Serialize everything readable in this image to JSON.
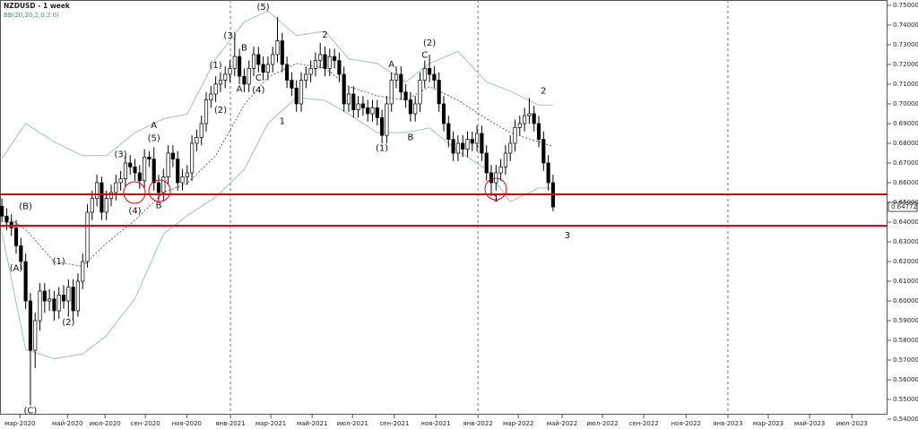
{
  "chart_data": {
    "type": "candlestick",
    "title": "NZDUSD - 1 week",
    "indicator": "BB(20,20,2,0,2.0)",
    "up_color": "#ffffff",
    "down_color": "#000000",
    "xlim": [
      -0.4,
      186.4
    ],
    "xticks": [
      {
        "value": 3.8,
        "label": "мар-2020"
      },
      {
        "value": 13.8,
        "label": "май-2020"
      },
      {
        "value": 21.7,
        "label": "июл-2020"
      },
      {
        "value": 30.2,
        "label": "сен-2020"
      },
      {
        "value": 38.9,
        "label": "ноя-2020"
      },
      {
        "value": 48.1,
        "label": "янв-2021"
      },
      {
        "value": 56.6,
        "label": "мар-2021"
      },
      {
        "value": 65.3,
        "label": "май-2021"
      },
      {
        "value": 73.8,
        "label": "июл-2021"
      },
      {
        "value": 82.6,
        "label": "сен-2021"
      },
      {
        "value": 91.3,
        "label": "ноя-2021"
      },
      {
        "value": 100.2,
        "label": "янв-2022"
      },
      {
        "value": 108.7,
        "label": "мар-2022"
      },
      {
        "value": 117.9,
        "label": "май-2022"
      },
      {
        "value": 126.4,
        "label": "июл-2022"
      },
      {
        "value": 135.1,
        "label": "сен-2022"
      },
      {
        "value": 144.0,
        "label": "ноя-2022"
      },
      {
        "value": 152.8,
        "label": "янв-2023"
      },
      {
        "value": 161.3,
        "label": "мар-2023"
      },
      {
        "value": 170.0,
        "label": "май-2023"
      },
      {
        "value": 178.9,
        "label": "июл-2023"
      }
    ],
    "ylim": [
      0.5423,
      0.7527
    ],
    "yticks": [
      {
        "value": 0.54,
        "label": "0.54000"
      },
      {
        "value": 0.55,
        "label": "0.55000"
      },
      {
        "value": 0.56,
        "label": "0.56000"
      },
      {
        "value": 0.57,
        "label": "0.57000"
      },
      {
        "value": 0.58,
        "label": "0.58000"
      },
      {
        "value": 0.59,
        "label": "0.59000"
      },
      {
        "value": 0.6,
        "label": "0.60000"
      },
      {
        "value": 0.61,
        "label": "0.61000"
      },
      {
        "value": 0.62,
        "label": "0.62000"
      },
      {
        "value": 0.63,
        "label": "0.63000"
      },
      {
        "value": 0.64,
        "label": "0.64000"
      },
      {
        "value": 0.65,
        "label": "0.65000"
      },
      {
        "value": 0.66,
        "label": "0.66000"
      },
      {
        "value": 0.67,
        "label": "0.67000"
      },
      {
        "value": 0.68,
        "label": "0.68000"
      },
      {
        "value": 0.69,
        "label": "0.69000"
      },
      {
        "value": 0.7,
        "label": "0.70000"
      },
      {
        "value": 0.71,
        "label": "0.71000"
      },
      {
        "value": 0.72,
        "label": "0.72000"
      },
      {
        "value": 0.73,
        "label": "0.73000"
      },
      {
        "value": 0.74,
        "label": "0.74000"
      },
      {
        "value": 0.75,
        "label": "0.75000"
      }
    ],
    "current_price": {
      "value": 0.64772,
      "label": "0.64772"
    },
    "levels": [
      {
        "value": 0.6541,
        "color": "#e8000b"
      },
      {
        "value": 0.6382,
        "color": "#e8000b"
      }
    ],
    "candles": [
      [
        0.648,
        0.652,
        0.64,
        0.643
      ],
      [
        0.643,
        0.647,
        0.636,
        0.64
      ],
      [
        0.64,
        0.644,
        0.633,
        0.637
      ],
      [
        0.637,
        0.641,
        0.624,
        0.628
      ],
      [
        0.628,
        0.632,
        0.616,
        0.62
      ],
      [
        0.62,
        0.624,
        0.596,
        0.6
      ],
      [
        0.6,
        0.604,
        0.547,
        0.575
      ],
      [
        0.575,
        0.594,
        0.566,
        0.59
      ],
      [
        0.59,
        0.609,
        0.585,
        0.605
      ],
      [
        0.605,
        0.609,
        0.594,
        0.6
      ],
      [
        0.6,
        0.606,
        0.595,
        0.601
      ],
      [
        0.601,
        0.605,
        0.59,
        0.595
      ],
      [
        0.595,
        0.607,
        0.591,
        0.603
      ],
      [
        0.603,
        0.608,
        0.596,
        0.6
      ],
      [
        0.6,
        0.611,
        0.592,
        0.607
      ],
      [
        0.607,
        0.611,
        0.59,
        0.595
      ],
      [
        0.595,
        0.614,
        0.592,
        0.61
      ],
      [
        0.61,
        0.624,
        0.606,
        0.62
      ],
      [
        0.62,
        0.649,
        0.617,
        0.645
      ],
      [
        0.645,
        0.656,
        0.641,
        0.652
      ],
      [
        0.652,
        0.664,
        0.648,
        0.66
      ],
      [
        0.66,
        0.663,
        0.641,
        0.645
      ],
      [
        0.645,
        0.656,
        0.641,
        0.652
      ],
      [
        0.652,
        0.659,
        0.648,
        0.655
      ],
      [
        0.655,
        0.664,
        0.651,
        0.66
      ],
      [
        0.66,
        0.666,
        0.656,
        0.662
      ],
      [
        0.662,
        0.674,
        0.658,
        0.67
      ],
      [
        0.67,
        0.674,
        0.664,
        0.668
      ],
      [
        0.668,
        0.672,
        0.661,
        0.665
      ],
      [
        0.665,
        0.669,
        0.657,
        0.661
      ],
      [
        0.661,
        0.677,
        0.657,
        0.673
      ],
      [
        0.673,
        0.676,
        0.668,
        0.672
      ],
      [
        0.672,
        0.678,
        0.656,
        0.66
      ],
      [
        0.66,
        0.664,
        0.651,
        0.655
      ],
      [
        0.655,
        0.667,
        0.651,
        0.663
      ],
      [
        0.663,
        0.679,
        0.659,
        0.675
      ],
      [
        0.675,
        0.679,
        0.668,
        0.672
      ],
      [
        0.672,
        0.676,
        0.656,
        0.66
      ],
      [
        0.66,
        0.667,
        0.656,
        0.663
      ],
      [
        0.663,
        0.669,
        0.659,
        0.665
      ],
      [
        0.665,
        0.684,
        0.661,
        0.68
      ],
      [
        0.68,
        0.687,
        0.676,
        0.683
      ],
      [
        0.683,
        0.694,
        0.679,
        0.69
      ],
      [
        0.69,
        0.706,
        0.686,
        0.702
      ],
      [
        0.702,
        0.709,
        0.698,
        0.705
      ],
      [
        0.705,
        0.714,
        0.701,
        0.71
      ],
      [
        0.71,
        0.716,
        0.706,
        0.712
      ],
      [
        0.712,
        0.719,
        0.708,
        0.715
      ],
      [
        0.715,
        0.722,
        0.711,
        0.718
      ],
      [
        0.718,
        0.734,
        0.714,
        0.724
      ],
      [
        0.724,
        0.728,
        0.71,
        0.714
      ],
      [
        0.714,
        0.718,
        0.706,
        0.71
      ],
      [
        0.71,
        0.722,
        0.706,
        0.718
      ],
      [
        0.718,
        0.729,
        0.714,
        0.725
      ],
      [
        0.725,
        0.729,
        0.716,
        0.72
      ],
      [
        0.72,
        0.724,
        0.712,
        0.716
      ],
      [
        0.716,
        0.724,
        0.712,
        0.72
      ],
      [
        0.72,
        0.729,
        0.716,
        0.725
      ],
      [
        0.725,
        0.744,
        0.721,
        0.732
      ],
      [
        0.732,
        0.736,
        0.716,
        0.72
      ],
      [
        0.72,
        0.724,
        0.708,
        0.712
      ],
      [
        0.712,
        0.716,
        0.704,
        0.708
      ],
      [
        0.708,
        0.712,
        0.696,
        0.7
      ],
      [
        0.7,
        0.716,
        0.696,
        0.712
      ],
      [
        0.712,
        0.719,
        0.708,
        0.715
      ],
      [
        0.715,
        0.722,
        0.711,
        0.718
      ],
      [
        0.718,
        0.726,
        0.714,
        0.722
      ],
      [
        0.722,
        0.731,
        0.718,
        0.725
      ],
      [
        0.725,
        0.729,
        0.714,
        0.718
      ],
      [
        0.718,
        0.728,
        0.714,
        0.724
      ],
      [
        0.724,
        0.728,
        0.718,
        0.722
      ],
      [
        0.722,
        0.726,
        0.711,
        0.715
      ],
      [
        0.715,
        0.719,
        0.696,
        0.7
      ],
      [
        0.7,
        0.709,
        0.696,
        0.705
      ],
      [
        0.705,
        0.709,
        0.693,
        0.697
      ],
      [
        0.697,
        0.704,
        0.693,
        0.7
      ],
      [
        0.7,
        0.704,
        0.694,
        0.698
      ],
      [
        0.698,
        0.702,
        0.691,
        0.695
      ],
      [
        0.695,
        0.702,
        0.691,
        0.698
      ],
      [
        0.698,
        0.702,
        0.689,
        0.693
      ],
      [
        0.693,
        0.697,
        0.68,
        0.684
      ],
      [
        0.684,
        0.704,
        0.68,
        0.7
      ],
      [
        0.7,
        0.716,
        0.696,
        0.712
      ],
      [
        0.712,
        0.719,
        0.708,
        0.715
      ],
      [
        0.715,
        0.719,
        0.702,
        0.706
      ],
      [
        0.706,
        0.71,
        0.698,
        0.702
      ],
      [
        0.702,
        0.706,
        0.691,
        0.695
      ],
      [
        0.695,
        0.704,
        0.691,
        0.7
      ],
      [
        0.7,
        0.716,
        0.696,
        0.712
      ],
      [
        0.712,
        0.722,
        0.708,
        0.718
      ],
      [
        0.718,
        0.725,
        0.711,
        0.715
      ],
      [
        0.715,
        0.719,
        0.708,
        0.712
      ],
      [
        0.712,
        0.716,
        0.696,
        0.7
      ],
      [
        0.7,
        0.704,
        0.686,
        0.69
      ],
      [
        0.69,
        0.694,
        0.678,
        0.682
      ],
      [
        0.682,
        0.686,
        0.671,
        0.675
      ],
      [
        0.675,
        0.684,
        0.671,
        0.68
      ],
      [
        0.68,
        0.684,
        0.673,
        0.677
      ],
      [
        0.677,
        0.686,
        0.673,
        0.682
      ],
      [
        0.682,
        0.686,
        0.676,
        0.68
      ],
      [
        0.68,
        0.689,
        0.676,
        0.685
      ],
      [
        0.685,
        0.689,
        0.671,
        0.675
      ],
      [
        0.675,
        0.679,
        0.661,
        0.665
      ],
      [
        0.665,
        0.669,
        0.653,
        0.66
      ],
      [
        0.66,
        0.669,
        0.656,
        0.665
      ],
      [
        0.665,
        0.672,
        0.661,
        0.668
      ],
      [
        0.668,
        0.679,
        0.664,
        0.675
      ],
      [
        0.675,
        0.684,
        0.671,
        0.68
      ],
      [
        0.68,
        0.692,
        0.676,
        0.688
      ],
      [
        0.688,
        0.694,
        0.684,
        0.69
      ],
      [
        0.69,
        0.698,
        0.686,
        0.694
      ],
      [
        0.694,
        0.703,
        0.69,
        0.695
      ],
      [
        0.695,
        0.699,
        0.686,
        0.69
      ],
      [
        0.69,
        0.694,
        0.678,
        0.682
      ],
      [
        0.682,
        0.686,
        0.666,
        0.67
      ],
      [
        0.67,
        0.674,
        0.656,
        0.66
      ],
      [
        0.66,
        0.664,
        0.6455,
        0.6477
      ]
    ],
    "bands": [
      {
        "color": "#8fbfb5",
        "dash": false,
        "x": [
          0,
          5,
          11,
          17,
          22,
          28,
          34,
          39,
          45,
          51,
          56,
          62,
          68,
          73,
          79,
          85,
          90,
          96,
          102,
          107,
          113,
          116
        ],
        "values": [
          0.6723,
          0.6901,
          0.6807,
          0.6737,
          0.6737,
          0.6854,
          0.6924,
          0.6948,
          0.7228,
          0.7416,
          0.7472,
          0.7346,
          0.7369,
          0.7228,
          0.7205,
          0.7111,
          0.7205,
          0.7266,
          0.7111,
          0.7064,
          0.6994,
          0.6994
        ]
      },
      {
        "color": "#555555",
        "dash": true,
        "x": [
          0,
          5,
          11,
          17,
          22,
          28,
          34,
          39,
          45,
          51,
          56,
          62,
          68,
          73,
          79,
          85,
          90,
          96,
          102,
          107,
          113,
          116
        ],
        "values": [
          0.6442,
          0.6363,
          0.6199,
          0.6176,
          0.6293,
          0.641,
          0.655,
          0.6597,
          0.6737,
          0.6995,
          0.7135,
          0.7205,
          0.7182,
          0.7088,
          0.7041,
          0.7018,
          0.7088,
          0.7018,
          0.6924,
          0.6854,
          0.6807,
          0.6784
        ]
      },
      {
        "color": "#8fbfb5",
        "dash": false,
        "x": [
          0,
          5,
          11,
          17,
          22,
          28,
          34,
          39,
          45,
          51,
          56,
          62,
          68,
          73,
          79,
          85,
          90,
          96,
          102,
          107,
          113,
          116
        ],
        "values": [
          0.6349,
          0.5754,
          0.5707,
          0.5731,
          0.5824,
          0.6012,
          0.6339,
          0.6433,
          0.6527,
          0.6667,
          0.6901,
          0.7032,
          0.7018,
          0.6948,
          0.6854,
          0.6854,
          0.6878,
          0.6761,
          0.6667,
          0.6503,
          0.6573,
          0.6573
        ]
      }
    ],
    "annotations": [
      {
        "text": "(B)",
        "x": 5,
        "y": 0.648
      },
      {
        "text": "(A)",
        "x": 3,
        "y": 0.6166
      },
      {
        "text": "(C)",
        "x": 6,
        "y": 0.5444
      },
      {
        "text": "(1)",
        "x": 12,
        "y": 0.62
      },
      {
        "text": "(2)",
        "x": 14,
        "y": 0.5891
      },
      {
        "text": "(3)",
        "x": 25,
        "y": 0.6742
      },
      {
        "text": "(4)",
        "x": 28,
        "y": 0.6457
      },
      {
        "text": "(5)",
        "x": 32,
        "y": 0.6826
      },
      {
        "text": "A",
        "x": 32,
        "y": 0.689
      },
      {
        "text": "B",
        "x": 33,
        "y": 0.6485
      },
      {
        "text": "(1)",
        "x": 45,
        "y": 0.7196
      },
      {
        "text": "(2)",
        "x": 46,
        "y": 0.6967
      },
      {
        "text": "(3)",
        "x": 48,
        "y": 0.7346
      },
      {
        "text": "A",
        "x": 50,
        "y": 0.7074
      },
      {
        "text": "B",
        "x": 51,
        "y": 0.7285
      },
      {
        "text": "C",
        "x": 54,
        "y": 0.7131
      },
      {
        "text": "(4)",
        "x": 54,
        "y": 0.707
      },
      {
        "text": "(5)",
        "x": 55,
        "y": 0.749
      },
      {
        "text": "1",
        "x": 59,
        "y": 0.6911
      },
      {
        "text": "2",
        "x": 68,
        "y": 0.735
      },
      {
        "text": "A",
        "x": 82,
        "y": 0.72
      },
      {
        "text": "(1)",
        "x": 80,
        "y": 0.6775
      },
      {
        "text": "B",
        "x": 86,
        "y": 0.683
      },
      {
        "text": "(2)",
        "x": 90,
        "y": 0.7308
      },
      {
        "text": "C",
        "x": 89,
        "y": 0.7247
      },
      {
        "text": "1",
        "x": 104,
        "y": 0.6518
      },
      {
        "text": "2",
        "x": 114,
        "y": 0.7065
      },
      {
        "text": "3",
        "x": 119,
        "y": 0.6331
      }
    ]
  }
}
